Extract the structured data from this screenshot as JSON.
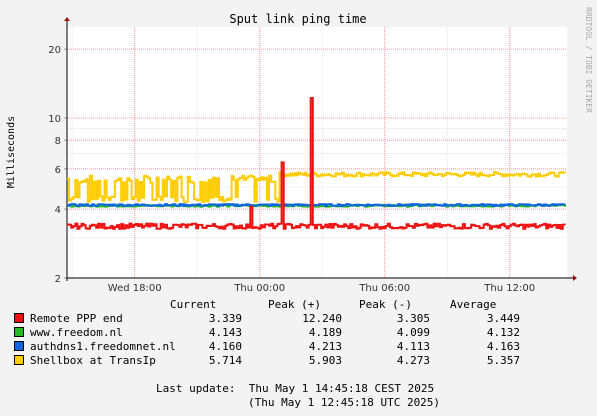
{
  "side_text": "RRDTOOL / TOBI OETIKER",
  "chart_data": {
    "type": "line",
    "title": "Sput link ping time",
    "ylabel": "Milliseconds",
    "yscale": "log",
    "ylim": [
      2,
      25
    ],
    "yticks": [
      "2",
      "4",
      "6",
      "8",
      "10",
      "20"
    ],
    "x_ticks": [
      "Wed 18:00",
      "Thu 00:00",
      "Thu 06:00",
      "Thu 12:00"
    ],
    "grid": true,
    "series": [
      {
        "name": "Remote PPP end",
        "color": "#ee1111",
        "current": "3.339",
        "peak_plus": "12.240",
        "peak_minus": "3.305",
        "average": "3.449",
        "description": "Baseline around 3.3-3.5 ms with spikes near Thu 00:00 (~6.4) and ~Thu 01:30 (12.24)"
      },
      {
        "name": "www.freedom.nl",
        "color": "#22bb22",
        "current": "4.143",
        "peak_plus": "4.189",
        "peak_minus": "4.099",
        "average": "4.132"
      },
      {
        "name": "authdns1.freedomnet.nl",
        "color": "#1166dd",
        "current": "4.160",
        "peak_plus": "4.213",
        "peak_minus": "4.113",
        "average": "4.163"
      },
      {
        "name": "Shellbox at TransIp",
        "color": "#ffcc00",
        "current": "5.714",
        "peak_plus": "5.903",
        "peak_minus": "4.273",
        "average": "5.357"
      }
    ]
  },
  "legend_headers": {
    "current": "Current",
    "peak_plus": "Peak (+)",
    "peak_minus": "Peak (-)",
    "average": "Average"
  },
  "last_update": {
    "line1": "Last update:  Thu May 1 14:45:18 CEST 2025",
    "line2": "(Thu May 1 12:45:18 UTC 2025)"
  }
}
